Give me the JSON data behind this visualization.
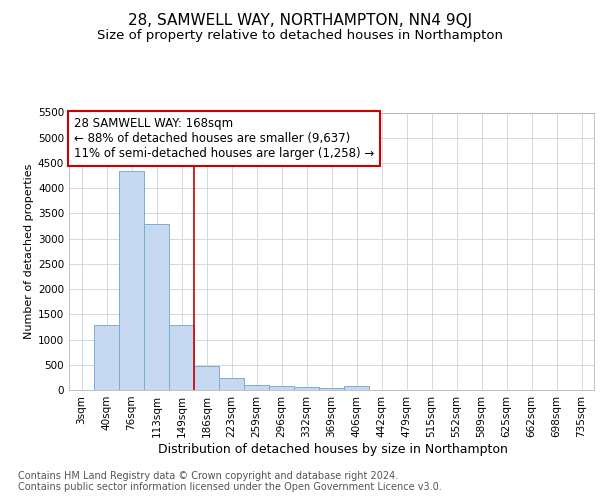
{
  "title": "28, SAMWELL WAY, NORTHAMPTON, NN4 9QJ",
  "subtitle": "Size of property relative to detached houses in Northampton",
  "xlabel": "Distribution of detached houses by size in Northampton",
  "ylabel": "Number of detached properties",
  "footer_line1": "Contains HM Land Registry data © Crown copyright and database right 2024.",
  "footer_line2": "Contains public sector information licensed under the Open Government Licence v3.0.",
  "annotation_line1": "28 SAMWELL WAY: 168sqm",
  "annotation_line2": "← 88% of detached houses are smaller (9,637)",
  "annotation_line3": "11% of semi-detached houses are larger (1,258) →",
  "bar_color": "#c6d9f0",
  "bar_edge_color": "#7aadd4",
  "vline_color": "#cc0000",
  "annotation_box_edge": "#cc0000",
  "background_color": "#ffffff",
  "grid_color": "#c8d4e0",
  "ylim": [
    0,
    5500
  ],
  "yticks": [
    0,
    500,
    1000,
    1500,
    2000,
    2500,
    3000,
    3500,
    4000,
    4500,
    5000,
    5500
  ],
  "categories": [
    "3sqm",
    "40sqm",
    "76sqm",
    "113sqm",
    "149sqm",
    "186sqm",
    "223sqm",
    "259sqm",
    "296sqm",
    "332sqm",
    "369sqm",
    "406sqm",
    "442sqm",
    "479sqm",
    "515sqm",
    "552sqm",
    "589sqm",
    "625sqm",
    "662sqm",
    "698sqm",
    "735sqm"
  ],
  "values": [
    0,
    1280,
    4350,
    3300,
    1280,
    480,
    230,
    100,
    75,
    50,
    30,
    75,
    0,
    0,
    0,
    0,
    0,
    0,
    0,
    0,
    0
  ],
  "vline_x_index": 4.5,
  "title_fontsize": 11,
  "subtitle_fontsize": 9.5,
  "xlabel_fontsize": 9,
  "ylabel_fontsize": 8,
  "tick_fontsize": 7.5,
  "annotation_fontsize": 8.5,
  "footer_fontsize": 7
}
